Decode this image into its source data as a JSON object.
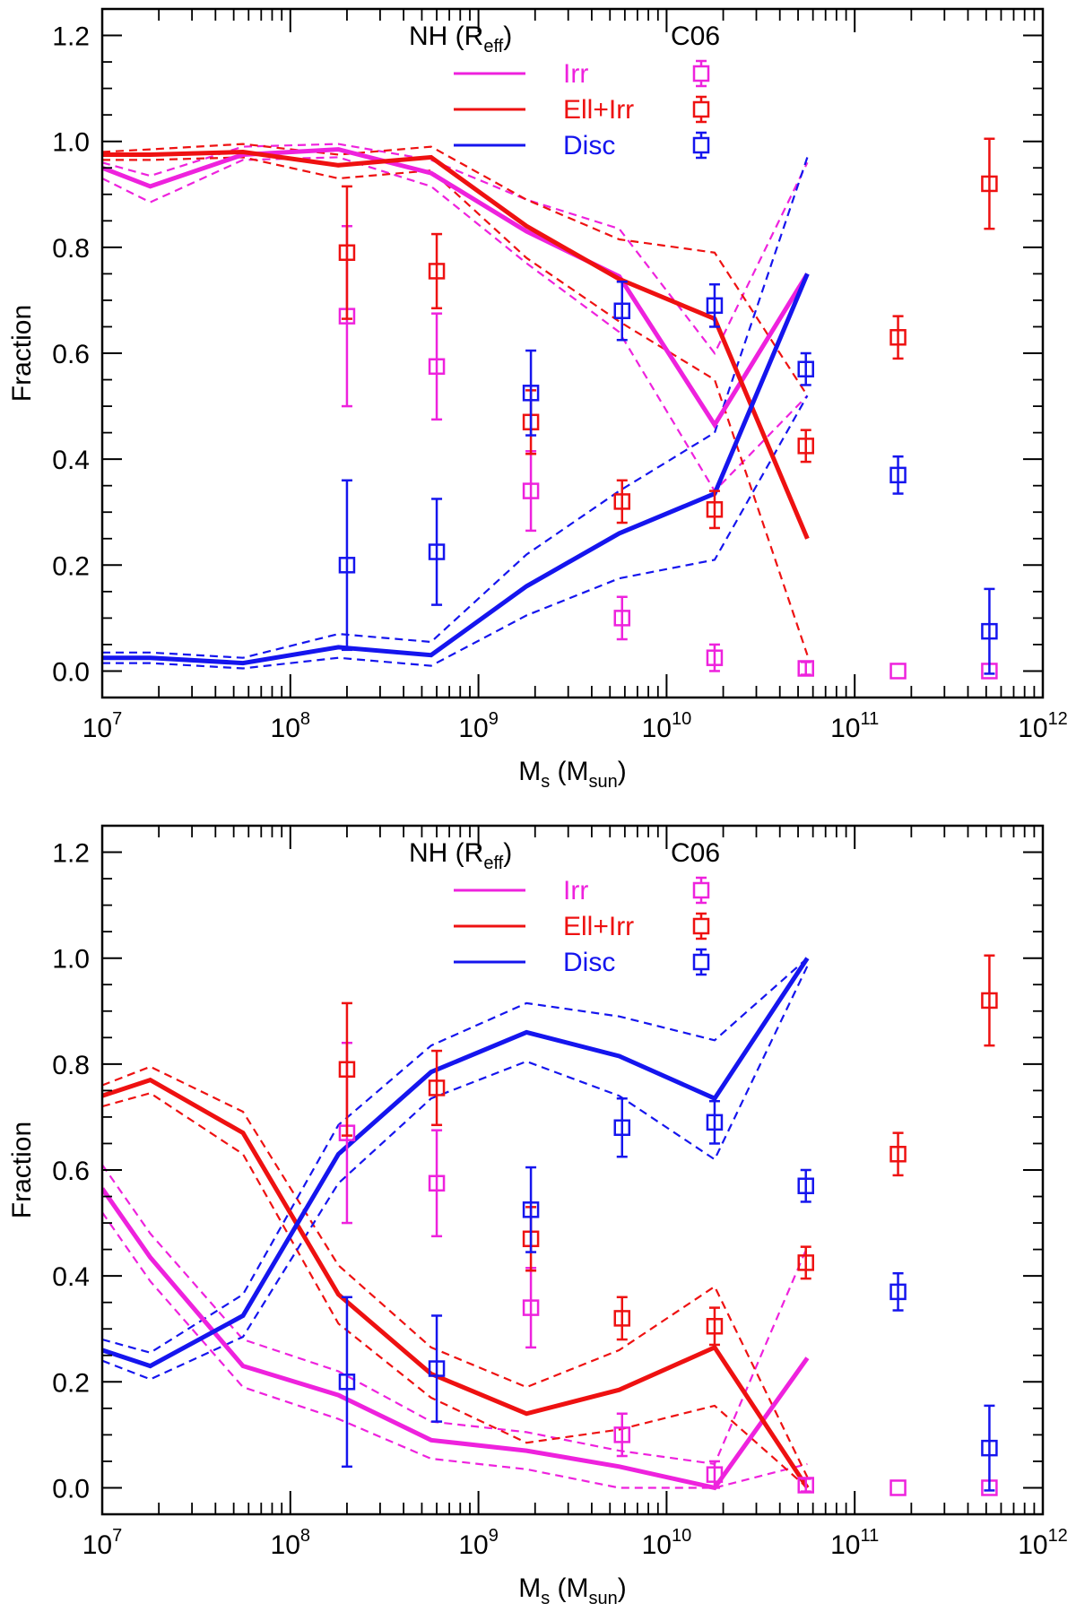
{
  "colors": {
    "irr": "#ee22dd",
    "ell": "#ee1111",
    "disc": "#1515ee",
    "axis": "#000000"
  },
  "legend": {
    "model_header_main": "NH (R",
    "model_header_sub": "eff",
    "model_header_close": ")",
    "obs_header": "C06",
    "irr_label": "Irr",
    "ell_label": "Ell+Irr",
    "disc_label": "Disc"
  },
  "axes": {
    "xlabel_main": "M",
    "xlabel_sub1": "s",
    "xlabel_mid": " (M",
    "xlabel_sub2": "sun",
    "xlabel_close": ")",
    "ylabel": "Fraction",
    "ytick_labels": [
      "0.0",
      "0.2",
      "0.4",
      "0.6",
      "0.8",
      "1.0",
      "1.2"
    ],
    "xtick_base": "10",
    "xtick_exponents": [
      "7",
      "8",
      "9",
      "10",
      "11",
      "12"
    ]
  },
  "chart_data": [
    {
      "type": "line",
      "panel": "top",
      "xscale": "log",
      "xlim": [
        10000000.0,
        1000000000000.0
      ],
      "ylim": [
        -0.05,
        1.25
      ],
      "yticks": [
        0,
        0.2,
        0.4,
        0.6,
        0.8,
        1.0,
        1.2
      ],
      "model_x": [
        10000000.0,
        18000000.0,
        56000000.0,
        180000000.0,
        560000000.0,
        1800000000.0,
        5600000000.0,
        18000000000.0,
        56000000000.0
      ],
      "series": [
        {
          "name": "Irr",
          "color_key": "irr",
          "values": [
            0.95,
            0.915,
            0.975,
            0.985,
            0.94,
            0.83,
            0.745,
            0.465,
            0.75
          ],
          "upper": [
            0.96,
            0.935,
            0.99,
            0.995,
            0.965,
            0.89,
            0.835,
            0.6,
            0.96
          ],
          "lower": [
            0.93,
            0.885,
            0.965,
            0.97,
            0.915,
            0.77,
            0.64,
            0.34,
            0.52
          ]
        },
        {
          "name": "Ell+Irr",
          "color_key": "ell",
          "values": [
            0.975,
            0.975,
            0.98,
            0.955,
            0.97,
            0.84,
            0.74,
            0.665,
            0.25
          ],
          "upper": [
            0.98,
            0.985,
            0.995,
            0.975,
            0.99,
            0.89,
            0.815,
            0.79,
            0.52
          ],
          "lower": [
            0.965,
            0.965,
            0.97,
            0.93,
            0.945,
            0.78,
            0.66,
            0.55,
            0.03
          ]
        },
        {
          "name": "Disc",
          "color_key": "disc",
          "values": [
            0.025,
            0.025,
            0.015,
            0.045,
            0.03,
            0.16,
            0.26,
            0.335,
            0.75
          ],
          "upper": [
            0.035,
            0.035,
            0.025,
            0.07,
            0.055,
            0.22,
            0.34,
            0.45,
            0.97
          ],
          "lower": [
            0.015,
            0.015,
            0.005,
            0.025,
            0.01,
            0.105,
            0.175,
            0.21,
            0.52
          ]
        }
      ],
      "observations": [
        {
          "name": "Irr",
          "color_key": "irr",
          "x": [
            200000000.0,
            600000000.0,
            1900000000.0,
            5800000000.0,
            18000000000.0,
            55000000000.0,
            170000000000.0,
            520000000000.0
          ],
          "values": [
            0.67,
            0.575,
            0.34,
            0.1,
            0.025,
            0.005,
            0.0,
            0.0
          ],
          "errors": [
            0.17,
            0.1,
            0.075,
            0.04,
            0.025,
            0.012,
            0.0,
            0.0
          ]
        },
        {
          "name": "Ell+Irr",
          "color_key": "ell",
          "x": [
            200000000.0,
            600000000.0,
            1900000000.0,
            5800000000.0,
            18000000000.0,
            55000000000.0,
            170000000000.0,
            520000000000.0
          ],
          "values": [
            0.79,
            0.755,
            0.47,
            0.32,
            0.305,
            0.425,
            0.63,
            0.92
          ],
          "errors": [
            0.125,
            0.07,
            0.06,
            0.04,
            0.035,
            0.03,
            0.04,
            0.085
          ]
        },
        {
          "name": "Disc",
          "color_key": "disc",
          "x": [
            200000000.0,
            600000000.0,
            1900000000.0,
            5800000000.0,
            18000000000.0,
            55000000000.0,
            170000000000.0,
            520000000000.0
          ],
          "values": [
            0.2,
            0.225,
            0.525,
            0.68,
            0.69,
            0.57,
            0.37,
            0.075
          ],
          "errors": [
            0.16,
            0.1,
            0.08,
            0.055,
            0.04,
            0.03,
            0.035,
            0.08
          ]
        }
      ]
    },
    {
      "type": "line",
      "panel": "bottom",
      "xscale": "log",
      "xlim": [
        10000000.0,
        1000000000000.0
      ],
      "ylim": [
        -0.05,
        1.25
      ],
      "yticks": [
        0,
        0.2,
        0.4,
        0.6,
        0.8,
        1.0,
        1.2
      ],
      "model_x": [
        10000000.0,
        18000000.0,
        56000000.0,
        180000000.0,
        560000000.0,
        1800000000.0,
        5600000000.0,
        18000000000.0,
        56000000000.0
      ],
      "series": [
        {
          "name": "Irr",
          "color_key": "irr",
          "values": [
            0.565,
            0.435,
            0.23,
            0.175,
            0.09,
            0.07,
            0.04,
            0.0,
            0.245
          ],
          "upper": [
            0.61,
            0.48,
            0.28,
            0.22,
            0.125,
            0.105,
            0.07,
            0.045,
            0.455
          ],
          "lower": [
            0.52,
            0.39,
            0.19,
            0.13,
            0.055,
            0.035,
            0.0,
            0.0,
            0.045
          ]
        },
        {
          "name": "Ell+Irr",
          "color_key": "ell",
          "values": [
            0.74,
            0.77,
            0.67,
            0.365,
            0.215,
            0.14,
            0.185,
            0.265,
            0.0
          ],
          "upper": [
            0.76,
            0.795,
            0.71,
            0.42,
            0.265,
            0.19,
            0.26,
            0.38,
            0.02
          ],
          "lower": [
            0.72,
            0.745,
            0.63,
            0.31,
            0.17,
            0.085,
            0.11,
            0.155,
            0.0
          ]
        },
        {
          "name": "Disc",
          "color_key": "disc",
          "values": [
            0.26,
            0.23,
            0.325,
            0.63,
            0.785,
            0.86,
            0.815,
            0.735,
            1.0
          ],
          "upper": [
            0.28,
            0.255,
            0.365,
            0.685,
            0.835,
            0.915,
            0.89,
            0.845,
            1.0
          ],
          "lower": [
            0.24,
            0.205,
            0.285,
            0.575,
            0.735,
            0.805,
            0.74,
            0.62,
            0.985
          ]
        }
      ],
      "observations": [
        {
          "name": "Irr",
          "color_key": "irr",
          "x": [
            200000000.0,
            600000000.0,
            1900000000.0,
            5800000000.0,
            18000000000.0,
            55000000000.0,
            170000000000.0,
            520000000000.0
          ],
          "values": [
            0.67,
            0.575,
            0.34,
            0.1,
            0.025,
            0.005,
            0.0,
            0.0
          ],
          "errors": [
            0.17,
            0.1,
            0.075,
            0.04,
            0.025,
            0.012,
            0.0,
            0.0
          ]
        },
        {
          "name": "Ell+Irr",
          "color_key": "ell",
          "x": [
            200000000.0,
            600000000.0,
            1900000000.0,
            5800000000.0,
            18000000000.0,
            55000000000.0,
            170000000000.0,
            520000000000.0
          ],
          "values": [
            0.79,
            0.755,
            0.47,
            0.32,
            0.305,
            0.425,
            0.63,
            0.92
          ],
          "errors": [
            0.125,
            0.07,
            0.06,
            0.04,
            0.035,
            0.03,
            0.04,
            0.085
          ]
        },
        {
          "name": "Disc",
          "color_key": "disc",
          "x": [
            200000000.0,
            600000000.0,
            1900000000.0,
            5800000000.0,
            18000000000.0,
            55000000000.0,
            170000000000.0,
            520000000000.0
          ],
          "values": [
            0.2,
            0.225,
            0.525,
            0.68,
            0.69,
            0.57,
            0.37,
            0.075
          ],
          "errors": [
            0.16,
            0.1,
            0.08,
            0.055,
            0.04,
            0.03,
            0.035,
            0.08
          ]
        }
      ]
    }
  ]
}
